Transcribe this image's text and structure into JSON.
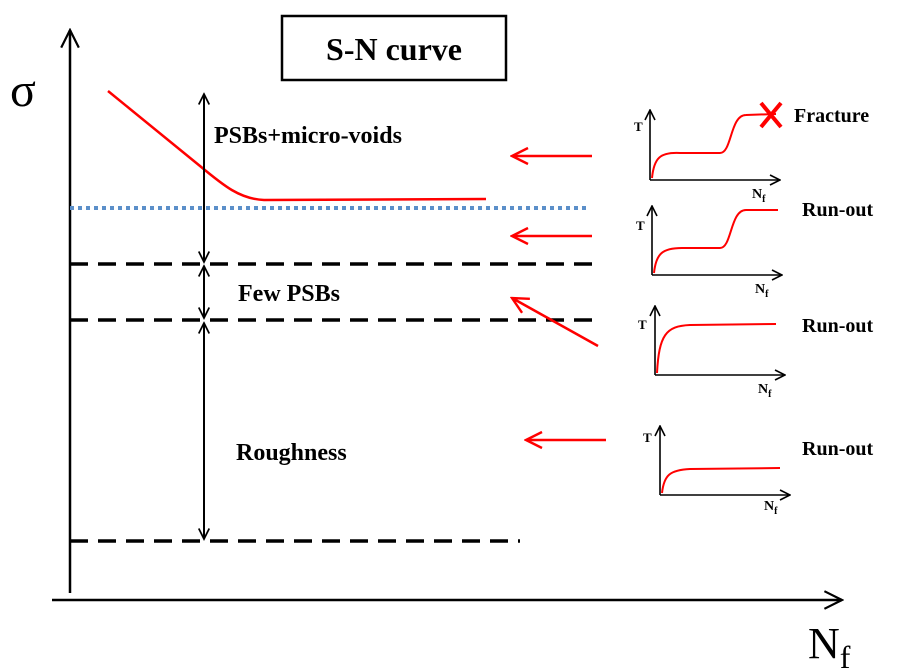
{
  "title": "S-N curve",
  "main_axes": {
    "y_label": "σ",
    "x_label_main": "N",
    "x_label_sub": "f"
  },
  "regions": {
    "psbs_voids": "PSBs+micro-voids",
    "few_psbs": "Few PSBs",
    "roughness": "Roughness"
  },
  "insets": [
    {
      "y_label": "T",
      "x_label_main": "N",
      "x_label_sub": "f",
      "outcome": "Fracture"
    },
    {
      "y_label": "T",
      "x_label_main": "N",
      "x_label_sub": "f",
      "outcome": "Run-out"
    },
    {
      "y_label": "T",
      "x_label_main": "N",
      "x_label_sub": "f",
      "outcome": "Run-out"
    },
    {
      "y_label": "T",
      "x_label_main": "N",
      "x_label_sub": "f",
      "outcome": "Run-out"
    }
  ],
  "colors": {
    "curve": "#ff0000",
    "endurance_line": "#5b8fc9",
    "black": "#000000"
  }
}
